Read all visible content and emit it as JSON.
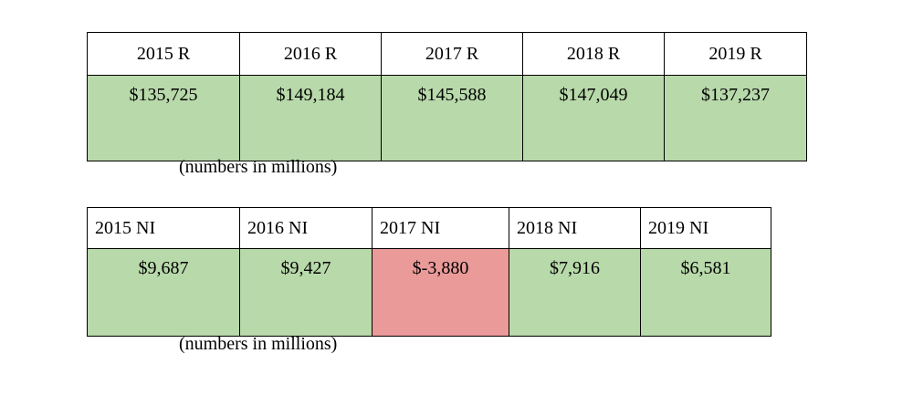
{
  "revenue": {
    "headers": [
      "2015 R",
      "2016 R",
      "2017 R",
      "2018 R",
      "2019 R"
    ],
    "values": [
      "$135,725",
      "$149,184",
      "$145,588",
      "$147,049",
      "$137,237"
    ],
    "note": "(numbers in millions)"
  },
  "net_income": {
    "headers": [
      "2015 NI",
      "2016 NI",
      "2017 NI",
      "2018 NI",
      "2019 NI"
    ],
    "values": [
      "$9,687",
      "$9,427",
      "$-3,880",
      "$7,916",
      "$6,581"
    ],
    "note": "(numbers in millions)"
  },
  "colors": {
    "positive": "#b8d9aa",
    "negative": "#ea9a99"
  }
}
